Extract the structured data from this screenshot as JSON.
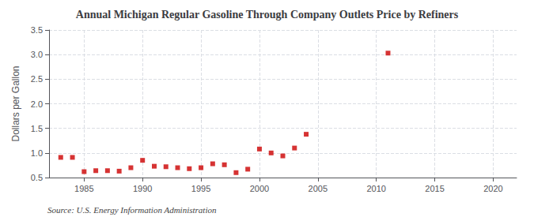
{
  "chart_data": {
    "type": "scatter",
    "title": "Annual Michigan Regular Gasoline Through Company Outlets Price by Refiners",
    "ylabel": "Dollars per Gallon",
    "annotations": [
      "Source: U.S. Energy Information Administration"
    ],
    "x": [
      1983,
      1984,
      1985,
      1986,
      1987,
      1988,
      1989,
      1990,
      1991,
      1992,
      1993,
      1994,
      1995,
      1996,
      1997,
      1998,
      1999,
      2000,
      2001,
      2002,
      2003,
      2004,
      2011
    ],
    "values": [
      0.91,
      0.91,
      0.62,
      0.64,
      0.64,
      0.63,
      0.7,
      0.85,
      0.73,
      0.72,
      0.7,
      0.68,
      0.7,
      0.78,
      0.76,
      0.6,
      0.67,
      1.08,
      1.0,
      0.94,
      1.1,
      1.38,
      3.03
    ],
    "color": "#cc0000",
    "marker": "square",
    "xlim": [
      1982,
      2022
    ],
    "xticks": [
      1985,
      1990,
      1995,
      2000,
      2005,
      2010,
      2015,
      2020
    ],
    "ylim": [
      0.5,
      3.5
    ],
    "yticks": [
      0.5,
      {
        "value": 1.0,
        "label": "1.0"
      },
      1.5,
      {
        "value": 2.0,
        "label": "2.0"
      },
      2.5,
      {
        "value": 3.0,
        "label": "3.0"
      },
      3.5
    ],
    "grid": true
  }
}
